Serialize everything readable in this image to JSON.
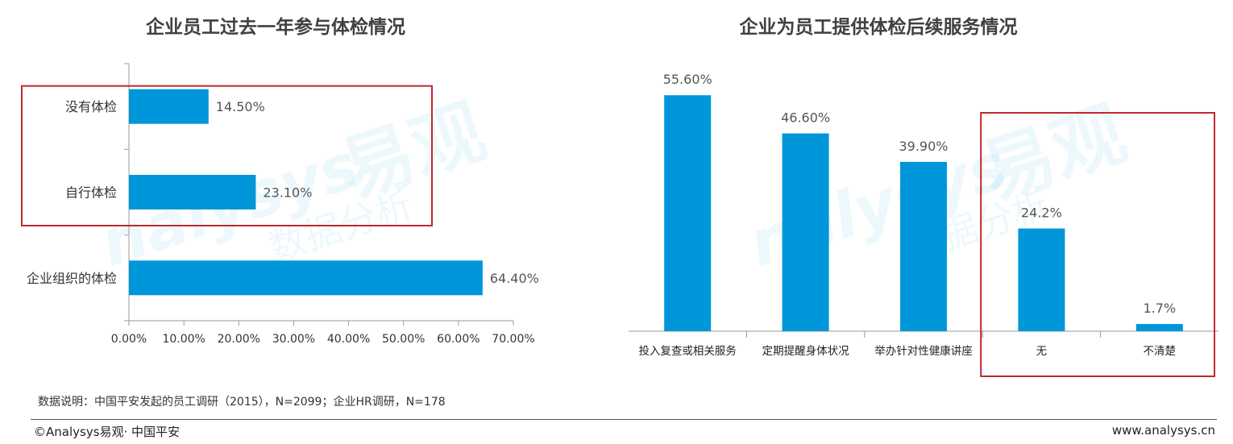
{
  "chart_data": [
    {
      "type": "bar",
      "orientation": "horizontal",
      "title": "企业员工过去一年参与体检情况",
      "categories": [
        "没有体检",
        "自行体检",
        "企业组织的体检"
      ],
      "values": [
        14.5,
        23.1,
        64.4
      ],
      "value_labels": [
        "14.50%",
        "23.10%",
        "64.40%"
      ],
      "xlim": [
        0,
        70
      ],
      "xticks": [
        "0.00%",
        "10.00%",
        "20.00%",
        "30.00%",
        "40.00%",
        "50.00%",
        "60.00%",
        "70.00%"
      ],
      "highlighted_categories": [
        "没有体检",
        "自行体检"
      ],
      "bar_color": "#0096da",
      "highlight_color": "#c0282d"
    },
    {
      "type": "bar",
      "orientation": "vertical",
      "title": "企业为员工提供体检后续服务情况",
      "categories": [
        "投入复查或相关服务",
        "定期提醒身体状况",
        "举办针对性健康讲座",
        "无",
        "不清楚"
      ],
      "values": [
        55.6,
        46.6,
        39.9,
        24.2,
        1.7
      ],
      "value_labels": [
        "55.60%",
        "46.60%",
        "39.90%",
        "24.2%",
        "1.7%"
      ],
      "ylim": [
        0,
        60
      ],
      "highlighted_categories": [
        "无",
        "不清楚"
      ],
      "bar_color": "#0096da",
      "highlight_color": "#c0282d"
    }
  ],
  "note": "数据说明：中国平安发起的员工调研（2015），N=2099；企业HR调研，N=178",
  "footer": {
    "left": "©Analysys易观· 中国平安",
    "right": "www.analysys.cn"
  },
  "watermark": {
    "logo": "易观",
    "brand": "nalysys",
    "slogan": "数据分析"
  }
}
